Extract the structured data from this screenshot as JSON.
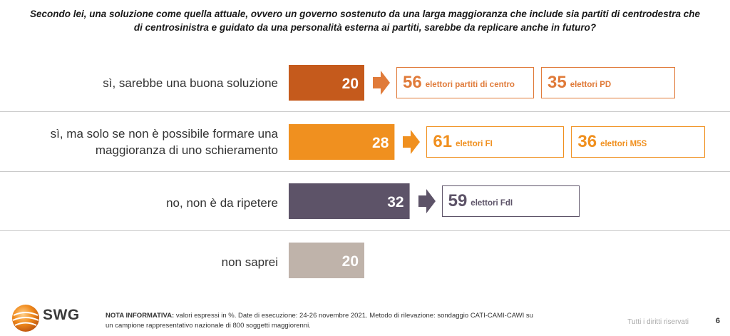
{
  "question": "Secondo lei, una soluzione come quella attuale, ovvero un governo sostenuto da una larga maggioranza che include sia partiti di centrodestra che di centrosinistra e guidato da una personalità esterna ai partiti, sarebbe da replicare anche in futuro?",
  "chart_data": {
    "type": "bar",
    "orientation": "horizontal",
    "unit": "%",
    "categories": [
      "sì, sarebbe una buona soluzione",
      "sì, ma solo se non è possibile formare una maggioranza di uno schieramento",
      "no, non è da ripetere",
      "non saprei"
    ],
    "values": [
      20,
      28,
      32,
      20
    ],
    "colors": [
      "#c55a1c",
      "#f0901f",
      "#5d5368",
      "#bfb3aa"
    ],
    "xlim": [
      0,
      32
    ],
    "elector_breakdowns": [
      [
        {
          "value": "56",
          "label": "elettori partiti di centro"
        },
        {
          "value": "35",
          "label": "elettori PD"
        }
      ],
      [
        {
          "value": "61",
          "label": "elettori FI"
        },
        {
          "value": "36",
          "label": "elettori M5S"
        }
      ],
      [
        {
          "value": "59",
          "label": "elettori FdI"
        }
      ],
      []
    ],
    "breakdown_colors": [
      "#e07b3a",
      "#f0901f",
      "#5d5368"
    ]
  },
  "labels": {
    "row0": "sì, sarebbe una buona soluzione",
    "row1a": "sì, ma solo se non è possibile formare una",
    "row1b": "maggioranza di uno schieramento",
    "row2": "no, non è da ripetere",
    "row3": "non saprei"
  },
  "footer": {
    "logo_text": "SWG",
    "note_title": "NOTA INFORMATIVA:",
    "note_line1": "valori espressi in %. Date di esecuzione: 24-26 novembre 2021. Metodo di rilevazione: sondaggio CATI-CAMI-CAWI su",
    "note_line2": "un campione rappresentativo nazionale di 800 soggetti maggiorenni.",
    "rights": "Tutti i diritti riservati",
    "page_number": "6"
  }
}
